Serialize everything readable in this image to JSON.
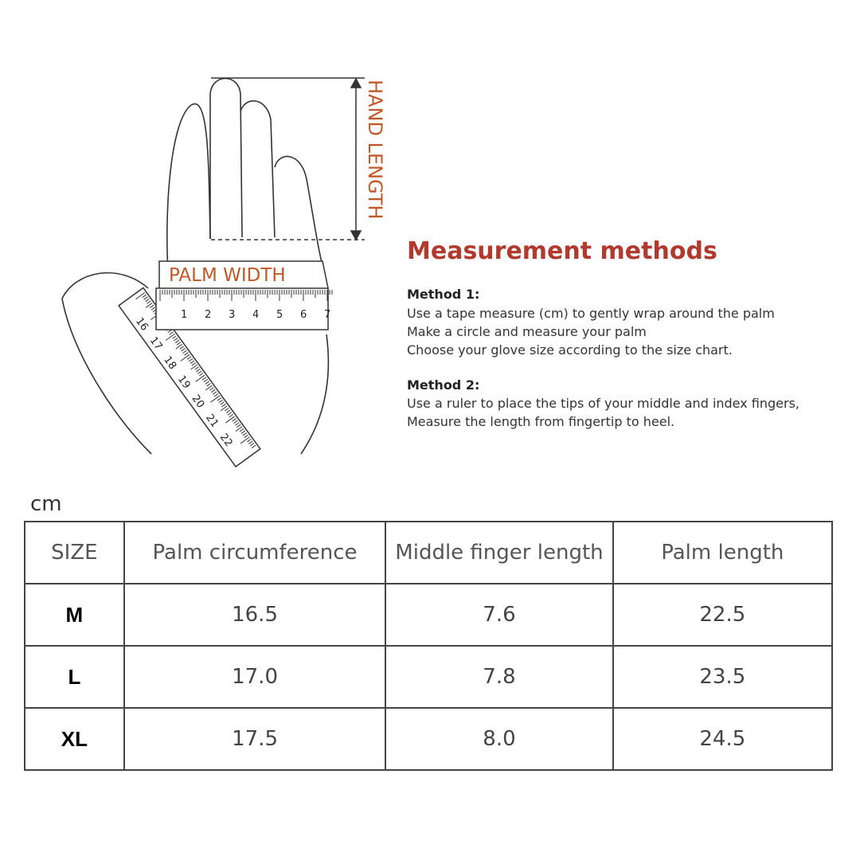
{
  "diagram": {
    "hand_length_label": "HAND LENGTH",
    "palm_width_label": "PALM WIDTH",
    "ruler_horizontal_numbers": [
      "1",
      "2",
      "3",
      "4",
      "5",
      "6",
      "7"
    ],
    "ruler_diagonal_numbers": [
      "16",
      "17",
      "18",
      "19",
      "20",
      "21",
      "22"
    ],
    "label_color": "#c0592a"
  },
  "methods": {
    "title": "Measurement methods",
    "title_color": "#b03a2e",
    "method1": {
      "heading": "Method 1:",
      "lines": [
        "Use a tape measure (cm) to gently wrap around the palm",
        "Make a circle and measure your palm",
        "Choose your glove size according to the size chart."
      ]
    },
    "method2": {
      "heading": "Method 2:",
      "lines": [
        "Use a ruler to place the tips of your middle and index fingers,",
        "Measure the length from fingertip to heel."
      ]
    }
  },
  "size_table": {
    "unit": "cm",
    "headers": [
      "SIZE",
      "Palm circumference",
      "Middle finger length",
      "Palm length"
    ],
    "rows": [
      [
        "M",
        "16.5",
        "7.6",
        "22.5"
      ],
      [
        "L",
        "17.0",
        "7.8",
        "23.5"
      ],
      [
        "XL",
        "17.5",
        "8.0",
        "24.5"
      ]
    ]
  }
}
